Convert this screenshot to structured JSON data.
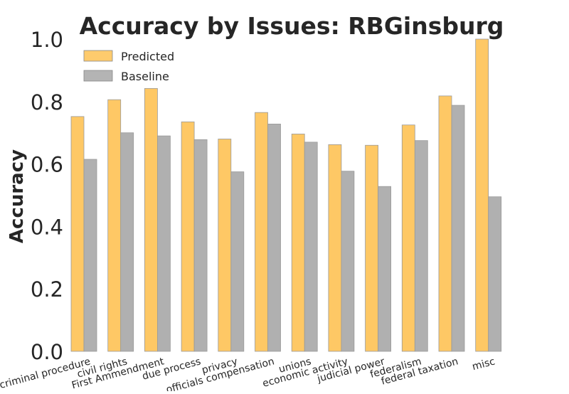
{
  "chart_data": {
    "type": "bar",
    "title": "Accuracy by Issues: RBGinsburg",
    "xlabel": "",
    "ylabel": "Accuracy",
    "ylim": [
      0,
      1.0
    ],
    "yticks": [
      "0.0",
      "0.2",
      "0.4",
      "0.6",
      "0.8",
      "1.0"
    ],
    "grid": false,
    "legend_position": "top-left",
    "categories": [
      "criminal procedure",
      "civil rights",
      "First Ammendment",
      "due process",
      "privacy",
      "officials compensation",
      "unions",
      "economic activity",
      "judicial power",
      "federalism",
      "federal taxation",
      "misc"
    ],
    "series": [
      {
        "name": "Predicted",
        "color": "#fec865",
        "values": [
          0.752,
          0.806,
          0.842,
          0.735,
          0.68,
          0.765,
          0.696,
          0.662,
          0.66,
          0.725,
          0.818,
          1.0
        ]
      },
      {
        "name": "Baseline",
        "color": "#b0b0b0",
        "values": [
          0.615,
          0.7,
          0.69,
          0.678,
          0.575,
          0.728,
          0.67,
          0.577,
          0.528,
          0.675,
          0.788,
          0.495
        ]
      }
    ]
  }
}
